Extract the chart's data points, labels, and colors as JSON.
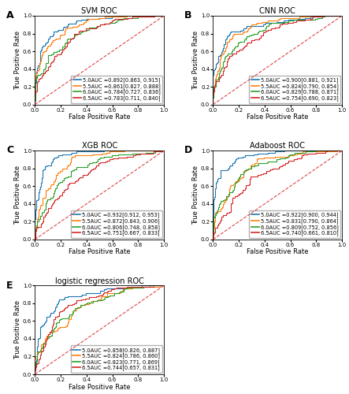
{
  "panels": {
    "A": {
      "title": "SVM ROC",
      "legend": [
        {
          "label": "5.0AUC =0.892[0.863, 0.915]",
          "color": "#1f77b4"
        },
        {
          "label": "5.5AUC =0.861[0.827, 0.888]",
          "color": "#ff7f0e"
        },
        {
          "label": "6.0AUC =0.784[0.727, 0.836]",
          "color": "#2ca02c"
        },
        {
          "label": "6.5AUC =0.783[0.711, 0.840]",
          "color": "#d62728"
        }
      ]
    },
    "B": {
      "title": "CNN ROC",
      "legend": [
        {
          "label": "5.0AUC =0.900[0.881, 0.921]",
          "color": "#1f77b4"
        },
        {
          "label": "5.5AUC =0.824[0.790, 0.854]",
          "color": "#ff7f0e"
        },
        {
          "label": "6.0AUC =0.829[0.788, 0.871]",
          "color": "#2ca02c"
        },
        {
          "label": "6.5AUC =0.754[0.690, 0.823]",
          "color": "#d62728"
        }
      ]
    },
    "C": {
      "title": "XGB ROC",
      "legend": [
        {
          "label": "5.0AUC =0.932[0.912, 0.953]",
          "color": "#1f77b4"
        },
        {
          "label": "5.5AUC =0.872[0.843, 0.906]",
          "color": "#ff7f0e"
        },
        {
          "label": "6.0AUC =0.806[0.748, 0.858]",
          "color": "#2ca02c"
        },
        {
          "label": "6.5AUC =0.751[0.667, 0.833]",
          "color": "#d62728"
        }
      ]
    },
    "D": {
      "title": "Adaboost ROC",
      "legend": [
        {
          "label": "5.0AUC =0.922[0.900, 0.944]",
          "color": "#1f77b4"
        },
        {
          "label": "5.5AUC =0.831[0.790, 0.864]",
          "color": "#ff7f0e"
        },
        {
          "label": "6.0AUC =0.809[0.752, 0.856]",
          "color": "#2ca02c"
        },
        {
          "label": "6.5AUC =0.740[0.661, 0.810]",
          "color": "#d62728"
        }
      ]
    },
    "E": {
      "title": "logistic regression ROC",
      "legend": [
        {
          "label": "5.0AUC =0.858[0.826, 0.887]",
          "color": "#1f77b4"
        },
        {
          "label": "5.5AUC =0.824[0.786, 0.860]",
          "color": "#ff7f0e"
        },
        {
          "label": "6.0AUC =0.823[0.771, 0.869]",
          "color": "#2ca02c"
        },
        {
          "label": "6.5AUC =0.744[0.657, 0.831]",
          "color": "#d62728"
        }
      ]
    }
  },
  "auc_values": {
    "A": [
      0.892,
      0.861,
      0.784,
      0.783
    ],
    "B": [
      0.9,
      0.824,
      0.829,
      0.754
    ],
    "C": [
      0.932,
      0.872,
      0.806,
      0.751
    ],
    "D": [
      0.922,
      0.831,
      0.809,
      0.74
    ],
    "E": [
      0.858,
      0.824,
      0.823,
      0.744
    ]
  },
  "colors": [
    "#1f77b4",
    "#ff7f0e",
    "#2ca02c",
    "#d62728"
  ],
  "diag_color": "#d62728",
  "bg_color": "#ffffff",
  "xlabel": "False Positive Rate",
  "ylabel": "True Positive Rate",
  "xlim": [
    0.0,
    1.0
  ],
  "ylim": [
    0.0,
    1.0
  ],
  "xticks": [
    0.0,
    0.2,
    0.4,
    0.6,
    0.8,
    1.0
  ],
  "yticks": [
    0.0,
    0.2,
    0.4,
    0.6,
    0.8,
    1.0
  ],
  "legend_fontsize": 4.8,
  "axis_fontsize": 6.0,
  "title_fontsize": 7.0,
  "panel_label_fontsize": 9,
  "tick_fontsize": 5.0
}
